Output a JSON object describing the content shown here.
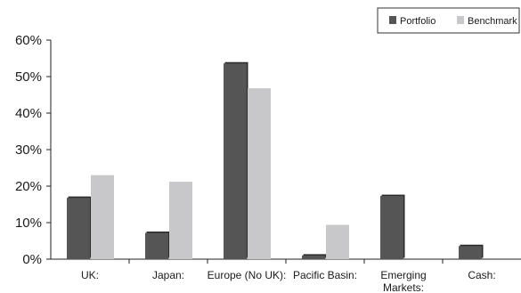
{
  "chart_data": {
    "type": "bar",
    "categories": [
      [
        "UK:"
      ],
      [
        "Japan:"
      ],
      [
        "Europe (No UK):"
      ],
      [
        "Pacific Basin:"
      ],
      [
        "Emerging",
        "Markets:"
      ],
      [
        "Cash:"
      ]
    ],
    "series": [
      {
        "name": "Portfolio",
        "color": "#555555",
        "values": [
          16.8,
          7.2,
          53.6,
          1.0,
          17.3,
          3.6
        ]
      },
      {
        "name": "Benchmark",
        "color": "#c8c8ca",
        "values": [
          23.0,
          21.2,
          46.8,
          9.4,
          0,
          0
        ]
      }
    ],
    "yticks": [
      "0%",
      "10%",
      "20%",
      "30%",
      "40%",
      "50%",
      "60%"
    ],
    "ylim": [
      0,
      60
    ],
    "legend_position": "top-right",
    "grid": false
  }
}
